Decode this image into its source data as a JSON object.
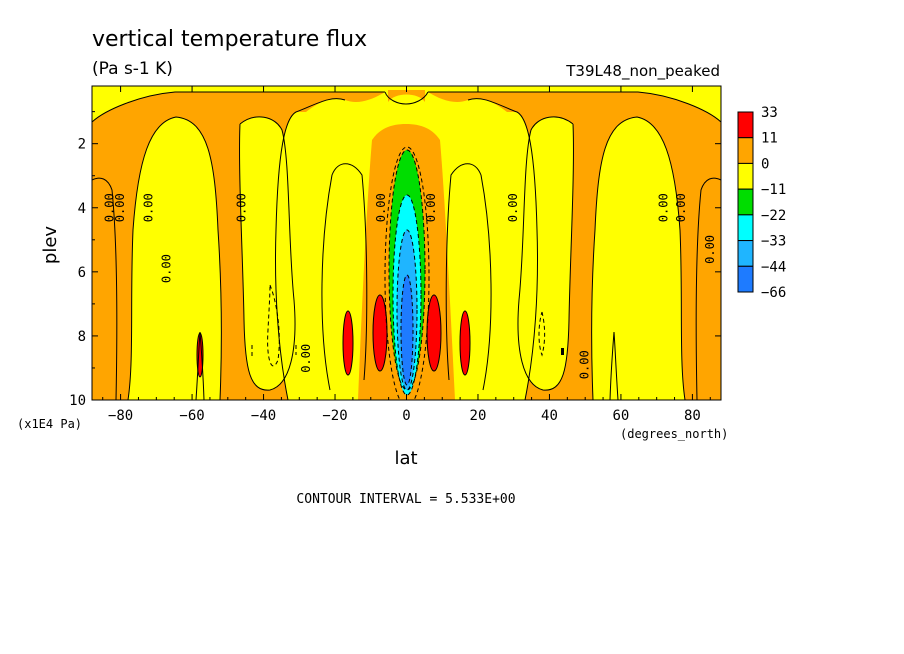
{
  "chart_data": {
    "type": "heatmap",
    "title": "vertical temperature flux",
    "units": "(Pa s-1 K)",
    "dataset": "T39L48_non_peaked",
    "xlabel": "lat",
    "x_units": "(degrees_north)",
    "ylabel": "plev",
    "y_units": "(x1E4 Pa)",
    "xlim": [
      -88,
      88
    ],
    "ylim": [
      10,
      0.2
    ],
    "x_ticks": [
      -80,
      -60,
      -40,
      -20,
      0,
      20,
      40,
      60,
      80
    ],
    "x_tick_labels": [
      "-80",
      "-60",
      "-40",
      "-20",
      "0",
      "20",
      "40",
      "60",
      "80"
    ],
    "y_ticks": [
      2,
      4,
      6,
      8,
      10
    ],
    "y_tick_labels": [
      "2",
      "4",
      "6",
      "8",
      "10"
    ],
    "footer": "CONTOUR INTERVAL = 5.533E+00",
    "colorbar": {
      "labels": [
        "33",
        "11",
        "0",
        "-11",
        "-22",
        "-33",
        "-44",
        "-66"
      ],
      "colors": [
        "#ff0000",
        "#ffa500",
        "#ffff00",
        "#00dd00",
        "#00ffff",
        "#1fb5ff",
        "#1e7bff"
      ]
    },
    "colors": {
      "background_band": "#ffa500",
      "neutral": "#ffff00",
      "positive": "#ff0000",
      "negative_1": "#00dd00",
      "negative_2": "#00ffff",
      "negative_3": "#1fb5ff",
      "negative_4": "#1e7bff"
    },
    "contour_labels": [
      {
        "lat": -83,
        "plev": 4.0,
        "text": "0.00"
      },
      {
        "lat": -80,
        "plev": 4.0,
        "text": "0.00"
      },
      {
        "lat": -72,
        "plev": 4.0,
        "text": "0.00"
      },
      {
        "lat": -67,
        "plev": 5.9,
        "text": "0.00"
      },
      {
        "lat": -46,
        "plev": 4.0,
        "text": "0.00"
      },
      {
        "lat": -28,
        "plev": 8.7,
        "text": "0.00"
      },
      {
        "lat": -7,
        "plev": 4.0,
        "text": "0.00"
      },
      {
        "lat": 7,
        "plev": 4.0,
        "text": "0.00"
      },
      {
        "lat": 30,
        "plev": 4.0,
        "text": "0.00"
      },
      {
        "lat": 50,
        "plev": 8.9,
        "text": "0.00"
      },
      {
        "lat": 72,
        "plev": 4.0,
        "text": "0.00"
      },
      {
        "lat": 77,
        "plev": 4.0,
        "text": "0.00"
      },
      {
        "lat": 85,
        "plev": 5.3,
        "text": "0.00"
      }
    ]
  }
}
